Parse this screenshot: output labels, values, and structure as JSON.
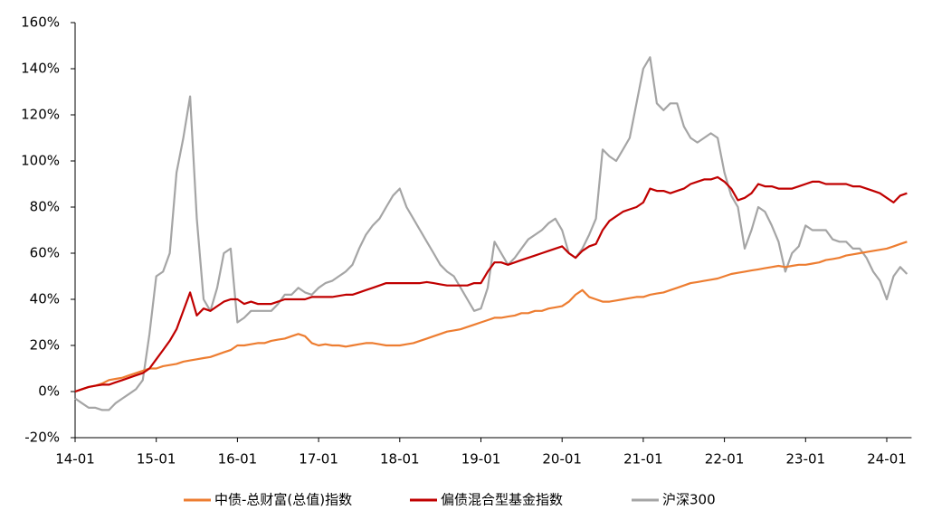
{
  "chart_data": {
    "type": "line",
    "x": [
      "14-01",
      "14-02",
      "14-03",
      "14-04",
      "14-05",
      "14-06",
      "14-07",
      "14-08",
      "14-09",
      "14-10",
      "14-11",
      "14-12",
      "15-01",
      "15-02",
      "15-03",
      "15-04",
      "15-05",
      "15-06",
      "15-07",
      "15-08",
      "15-09",
      "15-10",
      "15-11",
      "15-12",
      "16-01",
      "16-02",
      "16-03",
      "16-04",
      "16-05",
      "16-06",
      "16-07",
      "16-08",
      "16-09",
      "16-10",
      "16-11",
      "16-12",
      "17-01",
      "17-02",
      "17-03",
      "17-04",
      "17-05",
      "17-06",
      "17-07",
      "17-08",
      "17-09",
      "17-10",
      "17-11",
      "17-12",
      "18-01",
      "18-02",
      "18-03",
      "18-04",
      "18-05",
      "18-06",
      "18-07",
      "18-08",
      "18-09",
      "18-10",
      "18-11",
      "18-12",
      "19-01",
      "19-02",
      "19-03",
      "19-04",
      "19-05",
      "19-06",
      "19-07",
      "19-08",
      "19-09",
      "19-10",
      "19-11",
      "19-12",
      "20-01",
      "20-02",
      "20-03",
      "20-04",
      "20-05",
      "20-06",
      "20-07",
      "20-08",
      "20-09",
      "20-10",
      "20-11",
      "20-12",
      "21-01",
      "21-02",
      "21-03",
      "21-04",
      "21-05",
      "21-06",
      "21-07",
      "21-08",
      "21-09",
      "21-10",
      "21-11",
      "21-12",
      "22-01",
      "22-02",
      "22-03",
      "22-04",
      "22-05",
      "22-06",
      "22-07",
      "22-08",
      "22-09",
      "22-10",
      "22-11",
      "22-12",
      "23-01",
      "23-02",
      "23-03",
      "23-04",
      "23-05",
      "23-06",
      "23-07",
      "23-08",
      "23-09",
      "23-10",
      "23-11",
      "23-12",
      "24-01",
      "24-02",
      "24-03",
      "24-04"
    ],
    "xticks": [
      "14-01",
      "15-01",
      "16-01",
      "17-01",
      "18-01",
      "19-01",
      "20-01",
      "21-01",
      "22-01",
      "23-01",
      "24-01"
    ],
    "ylim": [
      -20,
      160
    ],
    "yticks": [
      {
        "value": -20,
        "label": "-20%"
      },
      {
        "value": 0,
        "label": "0%"
      },
      {
        "value": 20,
        "label": "20%"
      },
      {
        "value": 40,
        "label": "40%"
      },
      {
        "value": 60,
        "label": "60%"
      },
      {
        "value": 80,
        "label": "80%"
      },
      {
        "value": 100,
        "label": "100%"
      },
      {
        "value": 120,
        "label": "120%"
      },
      {
        "value": 140,
        "label": "140%"
      },
      {
        "value": 160,
        "label": "160%"
      }
    ],
    "legend": "bottom",
    "series": [
      {
        "name": "中债-总财富(总值)指数",
        "color": "#ED7D31",
        "values": [
          0,
          1,
          2,
          2.5,
          3.5,
          5,
          5.5,
          6,
          7,
          8,
          9,
          10,
          10,
          11,
          11.5,
          12,
          13,
          13.5,
          14,
          14.5,
          15,
          16,
          17,
          18,
          20,
          20,
          20.5,
          21,
          21,
          22,
          22.5,
          23,
          24,
          25,
          24,
          21,
          20,
          20.5,
          20,
          20,
          19.5,
          20,
          20.5,
          21,
          21,
          20.5,
          20,
          20,
          20,
          20.5,
          21,
          22,
          23,
          24,
          25,
          26,
          26.5,
          27,
          28,
          29,
          30,
          31,
          32,
          32,
          32.5,
          33,
          34,
          34,
          35,
          35,
          36,
          36.5,
          37,
          39,
          42,
          44,
          41,
          40,
          39,
          39,
          39.5,
          40,
          40.5,
          41,
          41,
          42,
          42.5,
          43,
          44,
          45,
          46,
          47,
          47.5,
          48,
          48.5,
          49,
          50,
          51,
          51.5,
          52,
          52.5,
          53,
          53.5,
          54,
          54.5,
          54,
          54.5,
          55,
          55,
          55.5,
          56,
          57,
          57.5,
          58,
          59,
          59.5,
          60,
          60.5,
          61,
          61.5,
          62,
          63,
          64,
          65
        ]
      },
      {
        "name": "偏债混合型基金指数",
        "color": "#C00000",
        "values": [
          0,
          1,
          2,
          2.5,
          3,
          3,
          4,
          5,
          6,
          7,
          8,
          10,
          14,
          18,
          22,
          27,
          35,
          43,
          33,
          36,
          35,
          37,
          39,
          40,
          40,
          38,
          39,
          38,
          38,
          38,
          39,
          40,
          40,
          40,
          40,
          41,
          41,
          41,
          41,
          41.5,
          42,
          42,
          43,
          44,
          45,
          46,
          47,
          47,
          47,
          47,
          47,
          47,
          47.5,
          47,
          46.5,
          46,
          46,
          46,
          46,
          47,
          47,
          52,
          56,
          56,
          55,
          56,
          57,
          58,
          59,
          60,
          61,
          62,
          63,
          60,
          58,
          61,
          63,
          64,
          70,
          74,
          76,
          78,
          79,
          80,
          82,
          88,
          87,
          87,
          86,
          87,
          88,
          90,
          91,
          92,
          92,
          93,
          91,
          88,
          83,
          84,
          86,
          90,
          89,
          89,
          88,
          88,
          88,
          89,
          90,
          91,
          91,
          90,
          90,
          90,
          90,
          89,
          89,
          88,
          87,
          86,
          84,
          82,
          85,
          86
        ]
      },
      {
        "name": "沪深300",
        "color": "#A5A5A5",
        "values": [
          -3,
          -5,
          -7,
          -7,
          -8,
          -8,
          -5,
          -3,
          -1,
          1,
          5,
          25,
          50,
          52,
          60,
          95,
          110,
          128,
          75,
          40,
          35,
          45,
          60,
          62,
          30,
          32,
          35,
          35,
          35,
          35,
          38,
          42,
          42,
          45,
          43,
          42,
          45,
          47,
          48,
          50,
          52,
          55,
          62,
          68,
          72,
          75,
          80,
          85,
          88,
          80,
          75,
          70,
          65,
          60,
          55,
          52,
          50,
          45,
          40,
          35,
          36,
          45,
          65,
          60,
          55,
          58,
          62,
          66,
          68,
          70,
          73,
          75,
          70,
          60,
          58,
          62,
          68,
          75,
          105,
          102,
          100,
          105,
          110,
          125,
          140,
          145,
          125,
          122,
          125,
          125,
          115,
          110,
          108,
          110,
          112,
          110,
          95,
          85,
          80,
          62,
          70,
          80,
          78,
          72,
          65,
          52,
          60,
          63,
          72,
          70,
          70,
          70,
          66,
          65,
          65,
          62,
          62,
          58,
          52,
          48,
          40,
          50,
          54,
          51
        ]
      }
    ]
  }
}
